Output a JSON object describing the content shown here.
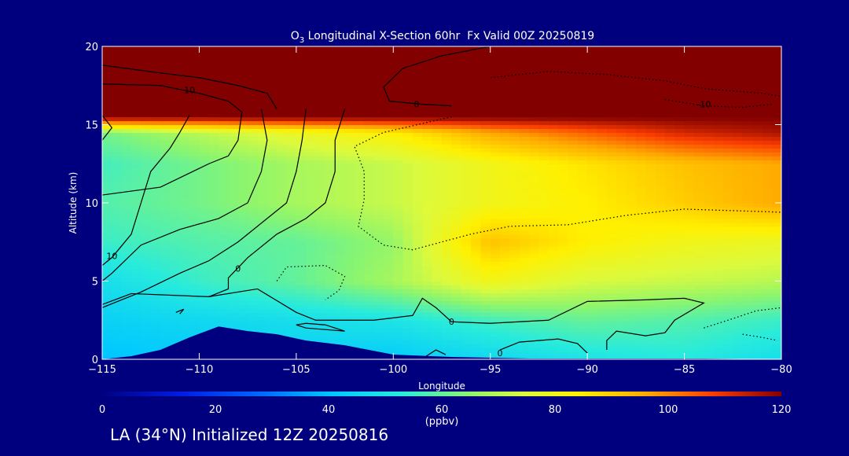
{
  "colors": {
    "background": "#00007f",
    "text": "#ffffff",
    "contour": "#000000"
  },
  "chart_data": {
    "type": "heatmap",
    "title_parts": {
      "species_base": "O",
      "species_sub": "3",
      "rest": " Longitudinal X-Section 60hr  Fx Valid 00Z 20250819"
    },
    "xlabel": "Longitude",
    "ylabel": "Altitude (km)",
    "xlim": [
      -115,
      -80
    ],
    "ylim": [
      0,
      20
    ],
    "xticks": [
      -115,
      -110,
      -105,
      -100,
      -95,
      -90,
      -85,
      -80
    ],
    "xtick_labels": [
      "−115",
      "−110",
      "−105",
      "−100",
      "−95",
      "−90",
      "−85",
      "−80"
    ],
    "yticks": [
      0,
      5,
      10,
      15,
      20
    ],
    "ytick_labels": [
      "0",
      "5",
      "10",
      "15",
      "20"
    ],
    "colorbar": {
      "range": [
        0,
        120
      ],
      "ticks": [
        0,
        20,
        40,
        60,
        80,
        100,
        120
      ],
      "tick_labels": [
        "0",
        "20",
        "40",
        "60",
        "80",
        "100",
        "120"
      ],
      "units": "(ppbv)"
    },
    "terrain": [
      {
        "x": -115,
        "y": 0
      },
      {
        "x": -113.5,
        "y": 0.2
      },
      {
        "x": -112,
        "y": 0.6
      },
      {
        "x": -110.5,
        "y": 1.4
      },
      {
        "x": -109,
        "y": 2.1
      },
      {
        "x": -107.5,
        "y": 1.8
      },
      {
        "x": -106,
        "y": 1.6
      },
      {
        "x": -104.5,
        "y": 1.2
      },
      {
        "x": -102.5,
        "y": 0.9
      },
      {
        "x": -100,
        "y": 0.3
      },
      {
        "x": -97,
        "y": 0.15
      },
      {
        "x": -93,
        "y": 0.05
      },
      {
        "x": -88,
        "y": 0.05
      },
      {
        "x": -84,
        "y": 0.05
      },
      {
        "x": -80,
        "y": 0.0
      }
    ],
    "ozone_grid": {
      "lons": [
        -115,
        -110,
        -105,
        -100,
        -95,
        -90,
        -85,
        -80
      ],
      "alts": [
        0,
        2.5,
        5,
        7.5,
        10,
        12.5,
        14.5,
        15.5,
        17.5,
        20
      ],
      "values": [
        [
          40,
          42,
          44,
          42,
          46,
          50,
          52,
          48
        ],
        [
          44,
          46,
          48,
          50,
          56,
          60,
          58,
          55
        ],
        [
          48,
          55,
          60,
          68,
          80,
          74,
          72,
          70
        ],
        [
          55,
          58,
          60,
          66,
          92,
          84,
          80,
          78
        ],
        [
          58,
          62,
          68,
          72,
          80,
          84,
          90,
          96
        ],
        [
          56,
          62,
          68,
          72,
          80,
          86,
          92,
          96
        ],
        [
          62,
          70,
          78,
          84,
          96,
          104,
          112,
          116
        ],
        [
          120,
          120,
          120,
          120,
          120,
          120,
          120,
          120
        ],
        [
          120,
          120,
          120,
          120,
          120,
          120,
          120,
          120
        ],
        [
          120,
          120,
          120,
          120,
          120,
          120,
          120,
          120
        ]
      ]
    },
    "contours": [
      {
        "style": "solid",
        "label": "10",
        "label_at": {
          "x": -110.5,
          "y": 17.2
        },
        "points": [
          [
            -115,
            18.8
          ],
          [
            -112,
            18.3
          ],
          [
            -110,
            18.0
          ],
          [
            -108,
            17.5
          ],
          [
            -106.5,
            17.0
          ],
          [
            -106,
            16.0
          ]
        ]
      },
      {
        "style": "solid",
        "label": "",
        "label_at": null,
        "points": [
          [
            -115,
            17.6
          ],
          [
            -112,
            17.5
          ],
          [
            -110,
            17.0
          ],
          [
            -108.5,
            16.5
          ],
          [
            -107.8,
            15.8
          ],
          [
            -108,
            14.0
          ],
          [
            -108.5,
            13.0
          ],
          [
            -109.5,
            12.5
          ],
          [
            -112,
            11.0
          ],
          [
            -115,
            10.5
          ]
        ]
      },
      {
        "style": "solid",
        "label": "10",
        "label_at": {
          "x": -114.5,
          "y": 6.6
        },
        "points": [
          [
            -110.5,
            15.6
          ],
          [
            -111,
            14.5
          ],
          [
            -111.5,
            13.5
          ],
          [
            -112.5,
            12.0
          ],
          [
            -113,
            10.0
          ],
          [
            -113.5,
            8.0
          ],
          [
            -114.5,
            6.5
          ],
          [
            -115,
            6.0
          ]
        ]
      },
      {
        "style": "solid",
        "label": "",
        "label_at": null,
        "points": [
          [
            -115,
            14.0
          ],
          [
            -114.5,
            14.8
          ],
          [
            -115,
            15.6
          ]
        ]
      },
      {
        "style": "solid",
        "label": "0",
        "label_at": {
          "x": -108.0,
          "y": 5.8
        },
        "points": [
          [
            -106.8,
            16.0
          ],
          [
            -106.5,
            14.0
          ],
          [
            -106.8,
            12.0
          ],
          [
            -107.5,
            10.0
          ],
          [
            -109,
            9.0
          ],
          [
            -111,
            8.3
          ],
          [
            -113,
            7.3
          ],
          [
            -114.5,
            5.5
          ],
          [
            -115,
            5.0
          ]
        ]
      },
      {
        "style": "solid",
        "label": "",
        "label_at": null,
        "points": [
          [
            -104.5,
            16.0
          ],
          [
            -104.7,
            14.0
          ],
          [
            -105,
            12.0
          ],
          [
            -105.5,
            10.0
          ],
          [
            -106.5,
            9.0
          ],
          [
            -108,
            7.5
          ],
          [
            -109.5,
            6.3
          ],
          [
            -111,
            5.5
          ],
          [
            -113,
            4.3
          ],
          [
            -115,
            3.3
          ]
        ]
      },
      {
        "style": "solid",
        "label": "",
        "label_at": null,
        "points": [
          [
            -102.5,
            16.0
          ],
          [
            -103,
            14.0
          ],
          [
            -103,
            12.0
          ],
          [
            -103.5,
            10.0
          ],
          [
            -104.5,
            9.0
          ],
          [
            -106,
            8.0
          ],
          [
            -107.5,
            6.5
          ],
          [
            -108.5,
            5.2
          ],
          [
            -108.5,
            4.5
          ],
          [
            -109.5,
            4.0
          ],
          [
            -113.5,
            4.2
          ],
          [
            -115,
            3.5
          ]
        ]
      },
      {
        "style": "solid",
        "label": "0",
        "label_at": {
          "x": -97.0,
          "y": 2.4
        },
        "points": [
          [
            -109.5,
            4.0
          ],
          [
            -107,
            4.5
          ],
          [
            -105,
            3.0
          ],
          [
            -104,
            2.5
          ],
          [
            -101,
            2.5
          ],
          [
            -99,
            2.8
          ],
          [
            -98.5,
            3.9
          ],
          [
            -97.8,
            3.3
          ],
          [
            -97,
            2.4
          ],
          [
            -95,
            2.3
          ],
          [
            -92,
            2.5
          ],
          [
            -90,
            3.7
          ],
          [
            -87,
            3.8
          ],
          [
            -85,
            3.9
          ],
          [
            -84,
            3.6
          ],
          [
            -85.5,
            2.5
          ],
          [
            -86,
            1.7
          ],
          [
            -87,
            1.5
          ],
          [
            -88.5,
            1.8
          ],
          [
            -89,
            1.2
          ],
          [
            -89,
            0.6
          ]
        ]
      },
      {
        "style": "solid",
        "label": "",
        "label_at": null,
        "points": [
          [
            -104.5,
            2.3
          ],
          [
            -103.5,
            2.2
          ],
          [
            -102.5,
            1.8
          ],
          [
            -104.5,
            2.0
          ],
          [
            -105,
            2.2
          ],
          [
            -104.5,
            2.3
          ]
        ]
      },
      {
        "style": "solid",
        "label": "0",
        "label_at": {
          "x": -94.5,
          "y": 0.4
        },
        "points": [
          [
            -94.5,
            0.6
          ],
          [
            -93.5,
            1.1
          ],
          [
            -91.5,
            1.3
          ],
          [
            -90.5,
            1.0
          ],
          [
            -90,
            0.4
          ]
        ]
      },
      {
        "style": "solid",
        "label": "",
        "label_at": null,
        "points": [
          [
            -98.3,
            0.2
          ],
          [
            -97.8,
            0.6
          ],
          [
            -97.3,
            0.3
          ]
        ]
      },
      {
        "style": "solid",
        "label": "",
        "label_at": null,
        "points": [
          [
            -111.2,
            3.0
          ],
          [
            -110.8,
            3.2
          ],
          [
            -111.0,
            2.9
          ]
        ]
      },
      {
        "style": "solid",
        "label": "0",
        "label_at": {
          "x": -98.8,
          "y": 16.3
        },
        "points": [
          [
            -95,
            20
          ],
          [
            -97.5,
            19.4
          ],
          [
            -99.5,
            18.6
          ],
          [
            -100.5,
            17.4
          ],
          [
            -100.2,
            16.5
          ],
          [
            -98.5,
            16.3
          ],
          [
            -97,
            16.2
          ]
        ]
      },
      {
        "style": "dashed",
        "label": "-10",
        "label_at": {
          "x": -84.0,
          "y": 16.3
        },
        "points": [
          [
            -95,
            18.0
          ],
          [
            -92,
            18.4
          ],
          [
            -89,
            18.2
          ],
          [
            -86,
            17.8
          ],
          [
            -84,
            17.3
          ],
          [
            -81,
            17.0
          ],
          [
            -80,
            16.8
          ]
        ]
      },
      {
        "style": "dashed",
        "label": "",
        "label_at": null,
        "points": [
          [
            -86,
            16.6
          ],
          [
            -84,
            16.2
          ],
          [
            -82,
            16.1
          ],
          [
            -80.5,
            16.3
          ]
        ]
      },
      {
        "style": "dashed",
        "label": "",
        "label_at": null,
        "points": [
          [
            -97,
            15.5
          ],
          [
            -100.5,
            14.5
          ],
          [
            -102,
            13.6
          ],
          [
            -101.5,
            12.0
          ],
          [
            -101.5,
            10.2
          ],
          [
            -101.8,
            8.5
          ],
          [
            -100.5,
            7.3
          ],
          [
            -99,
            7.0
          ],
          [
            -97.5,
            7.5
          ],
          [
            -96,
            8.0
          ],
          [
            -94,
            8.5
          ],
          [
            -91,
            8.6
          ],
          [
            -88,
            9.2
          ],
          [
            -85,
            9.6
          ],
          [
            -82.5,
            9.5
          ],
          [
            -80,
            9.4
          ]
        ]
      },
      {
        "style": "dashed",
        "label": "",
        "label_at": null,
        "points": [
          [
            -106,
            5.0
          ],
          [
            -105.5,
            5.9
          ],
          [
            -103.5,
            6.0
          ],
          [
            -102.5,
            5.3
          ],
          [
            -102.8,
            4.4
          ],
          [
            -103.5,
            3.8
          ]
        ]
      },
      {
        "style": "dashed",
        "label": "",
        "label_at": null,
        "points": [
          [
            -84,
            2.0
          ],
          [
            -82.5,
            2.6
          ],
          [
            -81.3,
            3.1
          ],
          [
            -80,
            3.3
          ]
        ]
      },
      {
        "style": "dashed",
        "label": "",
        "label_at": null,
        "points": [
          [
            -82,
            1.6
          ],
          [
            -81,
            1.4
          ],
          [
            -80.2,
            1.2
          ]
        ]
      }
    ]
  },
  "footer": {
    "text": "LA (34°N) Initialized 12Z 20250816"
  }
}
